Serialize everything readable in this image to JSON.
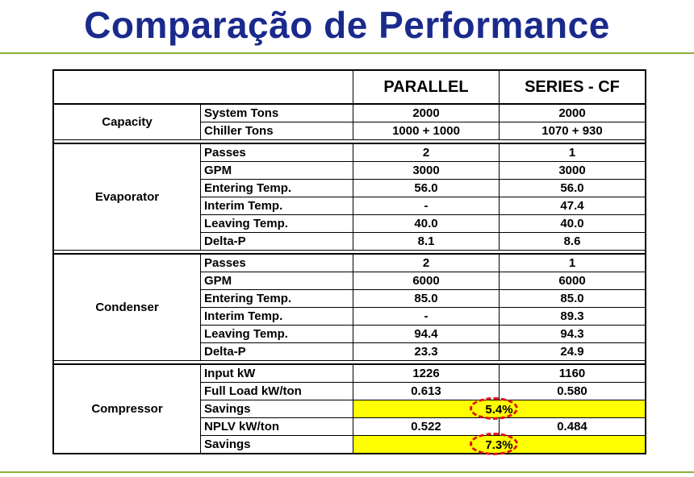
{
  "title": "Comparação de Performance",
  "table": {
    "headers": [
      "",
      "PARALLEL",
      "SERIES - CF"
    ],
    "sections": [
      {
        "name": "Capacity",
        "rows": [
          {
            "param": "System Tons",
            "parallel": "2000",
            "series": "2000"
          },
          {
            "param": "Chiller Tons",
            "parallel": "1000 + 1000",
            "series": "1070 + 930"
          }
        ]
      },
      {
        "name": "Evaporator",
        "rows": [
          {
            "param": "Passes",
            "parallel": "2",
            "series": "1"
          },
          {
            "param": "GPM",
            "parallel": "3000",
            "series": "3000"
          },
          {
            "param": "Entering Temp.",
            "parallel": "56.0",
            "series": "56.0"
          },
          {
            "param": "Interim Temp.",
            "parallel": "-",
            "series": "47.4"
          },
          {
            "param": "Leaving Temp.",
            "parallel": "40.0",
            "series": "40.0"
          },
          {
            "param": "Delta-P",
            "parallel": "8.1",
            "series": "8.6"
          }
        ]
      },
      {
        "name": "Condenser",
        "rows": [
          {
            "param": "Passes",
            "parallel": "2",
            "series": "1"
          },
          {
            "param": "GPM",
            "parallel": "6000",
            "series": "6000"
          },
          {
            "param": "Entering Temp.",
            "parallel": "85.0",
            "series": "85.0"
          },
          {
            "param": "Interim Temp.",
            "parallel": "-",
            "series": "89.3"
          },
          {
            "param": "Leaving Temp.",
            "parallel": "94.4",
            "series": "94.3"
          },
          {
            "param": "Delta-P",
            "parallel": "23.3",
            "series": "24.9"
          }
        ]
      },
      {
        "name": "Compressor",
        "rows": [
          {
            "param": "Input kW",
            "parallel": "1226",
            "series": "1160"
          },
          {
            "param": "Full Load kW/ton",
            "parallel": "0.613",
            "series": "0.580"
          },
          {
            "param": "Savings",
            "savings": "5.4%"
          },
          {
            "param": "NPLV kW/ton",
            "parallel": "0.522",
            "series": "0.484"
          },
          {
            "param": "Savings",
            "savings": "7.3%"
          }
        ]
      }
    ]
  },
  "colors": {
    "title": "#1a2a8c",
    "rule": "#8ab03a",
    "highlight": "#ffff00",
    "ring": "#e01010"
  }
}
